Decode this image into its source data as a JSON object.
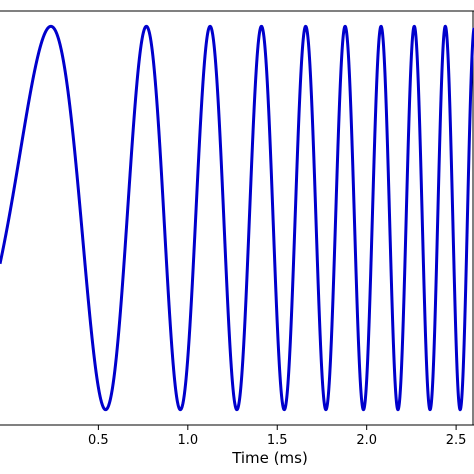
{
  "chart_data": {
    "type": "line",
    "xlabel": "Time (ms)",
    "ylabel": "",
    "xlim": [
      -0.05,
      2.6
    ],
    "ylim": [
      -1.08,
      1.08
    ],
    "grid": false,
    "legend": "none",
    "x_ticks": [
      {
        "value": 0.5,
        "label": "0.5"
      },
      {
        "value": 1.0,
        "label": "1.0"
      },
      {
        "value": 1.5,
        "label": "1.5"
      },
      {
        "value": 2.0,
        "label": "2.0"
      },
      {
        "value": 2.5,
        "label": "2.5"
      }
    ],
    "series": [
      {
        "color": "#0000cc",
        "description": "linear chirp y = sin(2*pi*(f0*t + k*t^2/2))",
        "f0": 0.82,
        "k": 2.1,
        "t_start": -0.05,
        "t_end": 2.6,
        "amplitude": 1.0
      }
    ]
  }
}
